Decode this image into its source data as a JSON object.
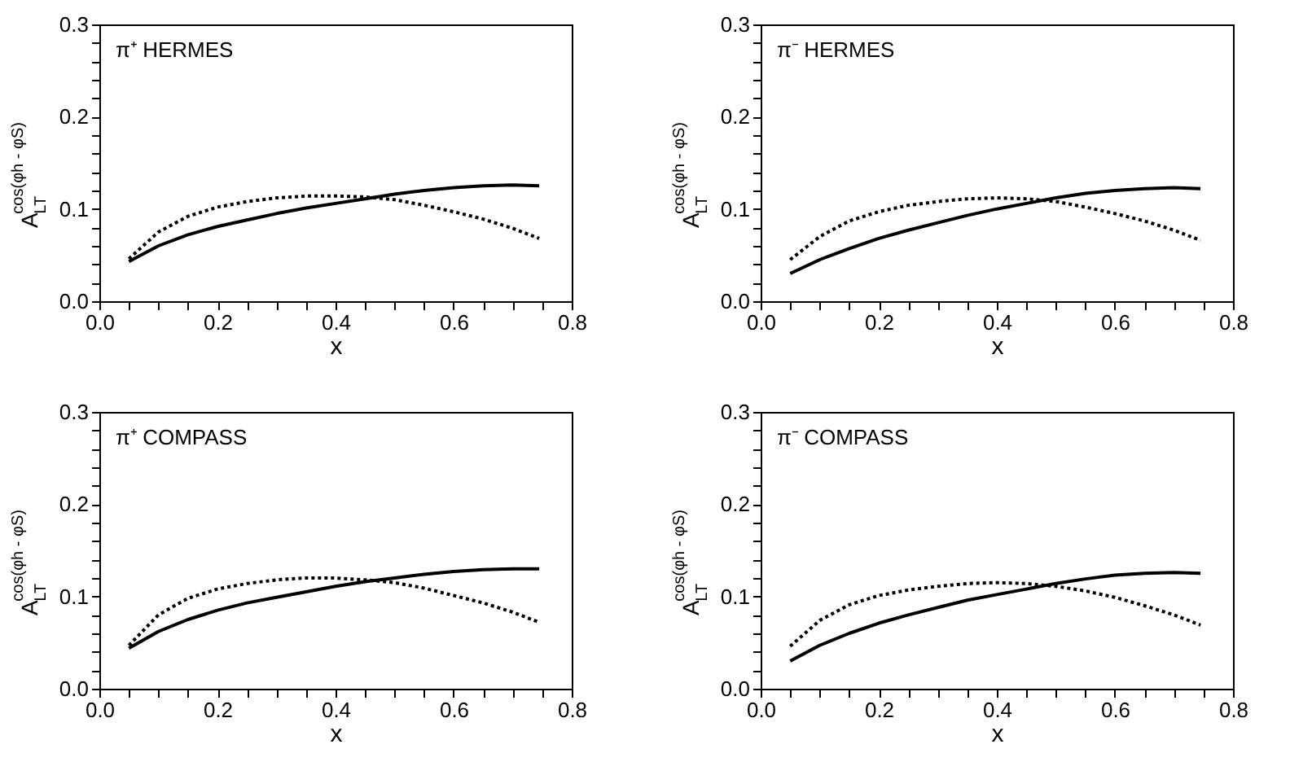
{
  "chart_data": [
    {
      "type": "line",
      "annotations": [
        "π⁺ HERMES"
      ],
      "xlabel": "x",
      "ylabel": "A$_{LT}$$^{cos(φh - φS)}$",
      "x": [
        0.05,
        0.1,
        0.15,
        0.2,
        0.25,
        0.3,
        0.35,
        0.4,
        0.45,
        0.5,
        0.55,
        0.6,
        0.65,
        0.7,
        0.745
      ],
      "series": [
        {
          "color": "#000000",
          "line_style": "solid",
          "values": [
            0.043,
            0.06,
            0.072,
            0.081,
            0.088,
            0.095,
            0.101,
            0.106,
            0.111,
            0.116,
            0.12,
            0.123,
            0.125,
            0.126,
            0.125
          ]
        },
        {
          "color": "#000000",
          "line_style": "dotted",
          "values": [
            0.046,
            0.075,
            0.092,
            0.102,
            0.108,
            0.112,
            0.114,
            0.114,
            0.113,
            0.11,
            0.104,
            0.097,
            0.089,
            0.079,
            0.068
          ]
        }
      ],
      "xlim": [
        0,
        0.8
      ],
      "ylim": [
        0,
        0.3
      ],
      "xticks": [
        {
          "value": 0,
          "label": "0.0"
        },
        {
          "value": 0.05,
          "label": null
        },
        0.2,
        {
          "value": 0.1,
          "label": null
        },
        {
          "value": 0.15,
          "label": null
        },
        {
          "value": 0.25,
          "label": null
        },
        {
          "value": 0.3,
          "label": null
        },
        {
          "value": 0.35,
          "label": null
        },
        0.4,
        {
          "value": 0.45,
          "label": null
        },
        {
          "value": 0.5,
          "label": null
        },
        {
          "value": 0.55,
          "label": null
        },
        0.6,
        {
          "value": 0.65,
          "label": null
        },
        {
          "value": 0.7,
          "label": null
        },
        {
          "value": 0.75,
          "label": null
        },
        0.8
      ],
      "yticks": [
        {
          "value": 0,
          "label": "0.0"
        },
        {
          "value": 0.02,
          "label": null
        },
        {
          "value": 0.04,
          "label": null
        },
        {
          "value": 0.06,
          "label": null
        },
        {
          "value": 0.08,
          "label": null
        },
        0.1,
        {
          "value": 0.12,
          "label": null
        },
        {
          "value": 0.14,
          "label": null
        },
        {
          "value": 0.16,
          "label": null
        },
        {
          "value": 0.18,
          "label": null
        },
        0.2,
        {
          "value": 0.22,
          "label": null
        },
        {
          "value": 0.24,
          "label": null
        },
        {
          "value": 0.26,
          "label": null
        },
        {
          "value": 0.28,
          "label": null
        },
        0.3
      ],
      "grid": false
    },
    {
      "type": "line",
      "annotations": [
        "π⁻ HERMES"
      ],
      "xlabel": "x",
      "ylabel": "A$_{LT}$$^{cos(φh - φS)}$",
      "x": [
        0.05,
        0.1,
        0.15,
        0.2,
        0.25,
        0.3,
        0.35,
        0.4,
        0.45,
        0.5,
        0.55,
        0.6,
        0.65,
        0.7,
        0.745
      ],
      "series": [
        {
          "color": "#000000",
          "line_style": "solid",
          "values": [
            0.03,
            0.045,
            0.057,
            0.068,
            0.077,
            0.085,
            0.093,
            0.1,
            0.106,
            0.112,
            0.117,
            0.12,
            0.122,
            0.123,
            0.122
          ]
        },
        {
          "color": "#000000",
          "line_style": "dotted",
          "values": [
            0.045,
            0.07,
            0.087,
            0.097,
            0.104,
            0.108,
            0.111,
            0.112,
            0.111,
            0.108,
            0.102,
            0.095,
            0.087,
            0.077,
            0.066
          ]
        }
      ],
      "xlim": [
        0,
        0.8
      ],
      "ylim": [
        0,
        0.3
      ],
      "xticks": [
        {
          "value": 0,
          "label": "0.0"
        },
        {
          "value": 0.05,
          "label": null
        },
        0.2,
        {
          "value": 0.1,
          "label": null
        },
        {
          "value": 0.15,
          "label": null
        },
        {
          "value": 0.25,
          "label": null
        },
        {
          "value": 0.3,
          "label": null
        },
        {
          "value": 0.35,
          "label": null
        },
        0.4,
        {
          "value": 0.45,
          "label": null
        },
        {
          "value": 0.5,
          "label": null
        },
        {
          "value": 0.55,
          "label": null
        },
        0.6,
        {
          "value": 0.65,
          "label": null
        },
        {
          "value": 0.7,
          "label": null
        },
        {
          "value": 0.75,
          "label": null
        },
        0.8
      ],
      "yticks": [
        {
          "value": 0,
          "label": "0.0"
        },
        {
          "value": 0.02,
          "label": null
        },
        {
          "value": 0.04,
          "label": null
        },
        {
          "value": 0.06,
          "label": null
        },
        {
          "value": 0.08,
          "label": null
        },
        0.1,
        {
          "value": 0.12,
          "label": null
        },
        {
          "value": 0.14,
          "label": null
        },
        {
          "value": 0.16,
          "label": null
        },
        {
          "value": 0.18,
          "label": null
        },
        0.2,
        {
          "value": 0.22,
          "label": null
        },
        {
          "value": 0.24,
          "label": null
        },
        {
          "value": 0.26,
          "label": null
        },
        {
          "value": 0.28,
          "label": null
        },
        0.3
      ],
      "grid": false
    },
    {
      "type": "line",
      "annotations": [
        "π⁺ COMPASS"
      ],
      "xlabel": "x",
      "ylabel": "A$_{LT}$$^{cos(φh - φS)}$",
      "x": [
        0.05,
        0.1,
        0.15,
        0.2,
        0.25,
        0.3,
        0.35,
        0.4,
        0.45,
        0.5,
        0.55,
        0.6,
        0.65,
        0.7,
        0.745
      ],
      "series": [
        {
          "color": "#000000",
          "line_style": "solid",
          "values": [
            0.044,
            0.062,
            0.075,
            0.085,
            0.093,
            0.099,
            0.105,
            0.111,
            0.116,
            0.12,
            0.124,
            0.127,
            0.129,
            0.13,
            0.13
          ]
        },
        {
          "color": "#000000",
          "line_style": "dotted",
          "values": [
            0.047,
            0.08,
            0.098,
            0.108,
            0.114,
            0.118,
            0.12,
            0.12,
            0.118,
            0.115,
            0.109,
            0.101,
            0.093,
            0.083,
            0.072
          ]
        }
      ],
      "xlim": [
        0,
        0.8
      ],
      "ylim": [
        0,
        0.3
      ],
      "xticks": [
        {
          "value": 0,
          "label": "0.0"
        },
        {
          "value": 0.05,
          "label": null
        },
        0.2,
        {
          "value": 0.1,
          "label": null
        },
        {
          "value": 0.15,
          "label": null
        },
        {
          "value": 0.25,
          "label": null
        },
        {
          "value": 0.3,
          "label": null
        },
        {
          "value": 0.35,
          "label": null
        },
        0.4,
        {
          "value": 0.45,
          "label": null
        },
        {
          "value": 0.5,
          "label": null
        },
        {
          "value": 0.55,
          "label": null
        },
        0.6,
        {
          "value": 0.65,
          "label": null
        },
        {
          "value": 0.7,
          "label": null
        },
        {
          "value": 0.75,
          "label": null
        },
        0.8
      ],
      "yticks": [
        {
          "value": 0,
          "label": "0.0"
        },
        {
          "value": 0.02,
          "label": null
        },
        {
          "value": 0.04,
          "label": null
        },
        {
          "value": 0.06,
          "label": null
        },
        {
          "value": 0.08,
          "label": null
        },
        0.1,
        {
          "value": 0.12,
          "label": null
        },
        {
          "value": 0.14,
          "label": null
        },
        {
          "value": 0.16,
          "label": null
        },
        {
          "value": 0.18,
          "label": null
        },
        0.2,
        {
          "value": 0.22,
          "label": null
        },
        {
          "value": 0.24,
          "label": null
        },
        {
          "value": 0.26,
          "label": null
        },
        {
          "value": 0.28,
          "label": null
        },
        0.3
      ],
      "grid": false
    },
    {
      "type": "line",
      "annotations": [
        "π⁻ COMPASS"
      ],
      "xlabel": "x",
      "ylabel": "A$_{LT}$$^{cos(φh - φS)}$",
      "x": [
        0.05,
        0.1,
        0.15,
        0.2,
        0.25,
        0.3,
        0.35,
        0.4,
        0.45,
        0.5,
        0.55,
        0.6,
        0.65,
        0.7,
        0.745
      ],
      "series": [
        {
          "color": "#000000",
          "line_style": "solid",
          "values": [
            0.03,
            0.047,
            0.06,
            0.071,
            0.08,
            0.088,
            0.096,
            0.102,
            0.108,
            0.114,
            0.119,
            0.123,
            0.125,
            0.126,
            0.125
          ]
        },
        {
          "color": "#000000",
          "line_style": "dotted",
          "values": [
            0.046,
            0.074,
            0.091,
            0.101,
            0.107,
            0.111,
            0.114,
            0.115,
            0.114,
            0.111,
            0.106,
            0.099,
            0.09,
            0.08,
            0.069
          ]
        }
      ],
      "xlim": [
        0,
        0.8
      ],
      "ylim": [
        0,
        0.3
      ],
      "xticks": [
        {
          "value": 0,
          "label": "0.0"
        },
        {
          "value": 0.05,
          "label": null
        },
        0.2,
        {
          "value": 0.1,
          "label": null
        },
        {
          "value": 0.15,
          "label": null
        },
        {
          "value": 0.25,
          "label": null
        },
        {
          "value": 0.3,
          "label": null
        },
        {
          "value": 0.35,
          "label": null
        },
        0.4,
        {
          "value": 0.45,
          "label": null
        },
        {
          "value": 0.5,
          "label": null
        },
        {
          "value": 0.55,
          "label": null
        },
        0.6,
        {
          "value": 0.65,
          "label": null
        },
        {
          "value": 0.7,
          "label": null
        },
        {
          "value": 0.75,
          "label": null
        },
        0.8
      ],
      "yticks": [
        {
          "value": 0,
          "label": "0.0"
        },
        {
          "value": 0.02,
          "label": null
        },
        {
          "value": 0.04,
          "label": null
        },
        {
          "value": 0.06,
          "label": null
        },
        {
          "value": 0.08,
          "label": null
        },
        0.1,
        {
          "value": 0.12,
          "label": null
        },
        {
          "value": 0.14,
          "label": null
        },
        {
          "value": 0.16,
          "label": null
        },
        {
          "value": 0.18,
          "label": null
        },
        0.2,
        {
          "value": 0.22,
          "label": null
        },
        {
          "value": 0.24,
          "label": null
        },
        {
          "value": 0.26,
          "label": null
        },
        {
          "value": 0.28,
          "label": null
        },
        0.3
      ],
      "grid": false
    }
  ]
}
